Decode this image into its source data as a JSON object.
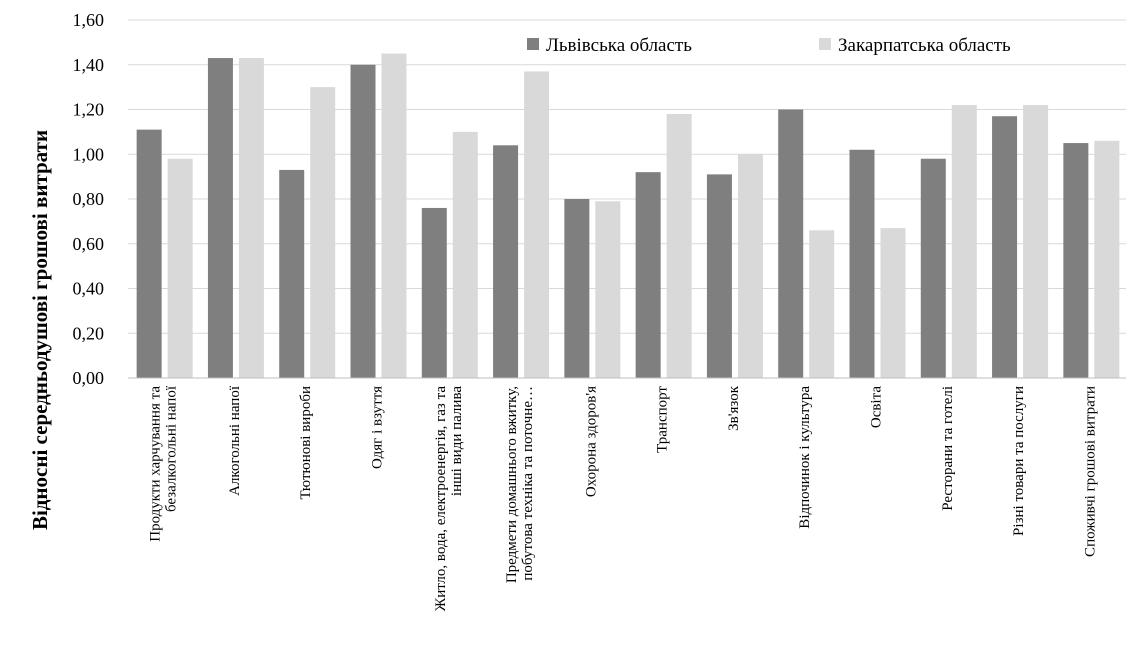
{
  "chart_data": {
    "type": "bar",
    "ylabel": "Відносні середньодушові грошові витрати",
    "xlabel": "",
    "ylim": [
      0,
      1.6
    ],
    "yticks": [
      "0,00",
      "0,20",
      "0,40",
      "0,60",
      "0,80",
      "1,00",
      "1,20",
      "1,40",
      "1,60"
    ],
    "grid": true,
    "legend_position": "top-right",
    "categories": [
      [
        "Продукти харчування та",
        "безалкогольні напої"
      ],
      [
        "Алкогольні напої"
      ],
      [
        "Тютюнові вироби"
      ],
      [
        "Одяг і взуття"
      ],
      [
        "Житло, вода, електроенергія, газ та",
        "інші види палива"
      ],
      [
        "Предмети домашнього вжитку,",
        "побутова техніка та поточне…"
      ],
      [
        "Охорона здоров'я"
      ],
      [
        "Транспорт"
      ],
      [
        "Зв'язок"
      ],
      [
        "Відпочинок і культура"
      ],
      [
        "Освіта"
      ],
      [
        "Ресторани та готелі"
      ],
      [
        "Різні товари та послуги"
      ],
      [
        "Споживчі грошові витрати"
      ]
    ],
    "series": [
      {
        "name": "Львівська область",
        "color": "#7f7f7f",
        "values": [
          1.11,
          1.43,
          0.93,
          1.4,
          0.76,
          1.04,
          0.8,
          0.92,
          0.91,
          1.2,
          1.02,
          0.98,
          1.17,
          1.05
        ]
      },
      {
        "name": "Закарпатська область",
        "color": "#d9d9d9",
        "values": [
          0.98,
          1.43,
          1.3,
          1.45,
          1.1,
          1.37,
          0.79,
          1.18,
          1.0,
          0.66,
          0.67,
          1.22,
          1.22,
          1.06
        ]
      }
    ]
  }
}
